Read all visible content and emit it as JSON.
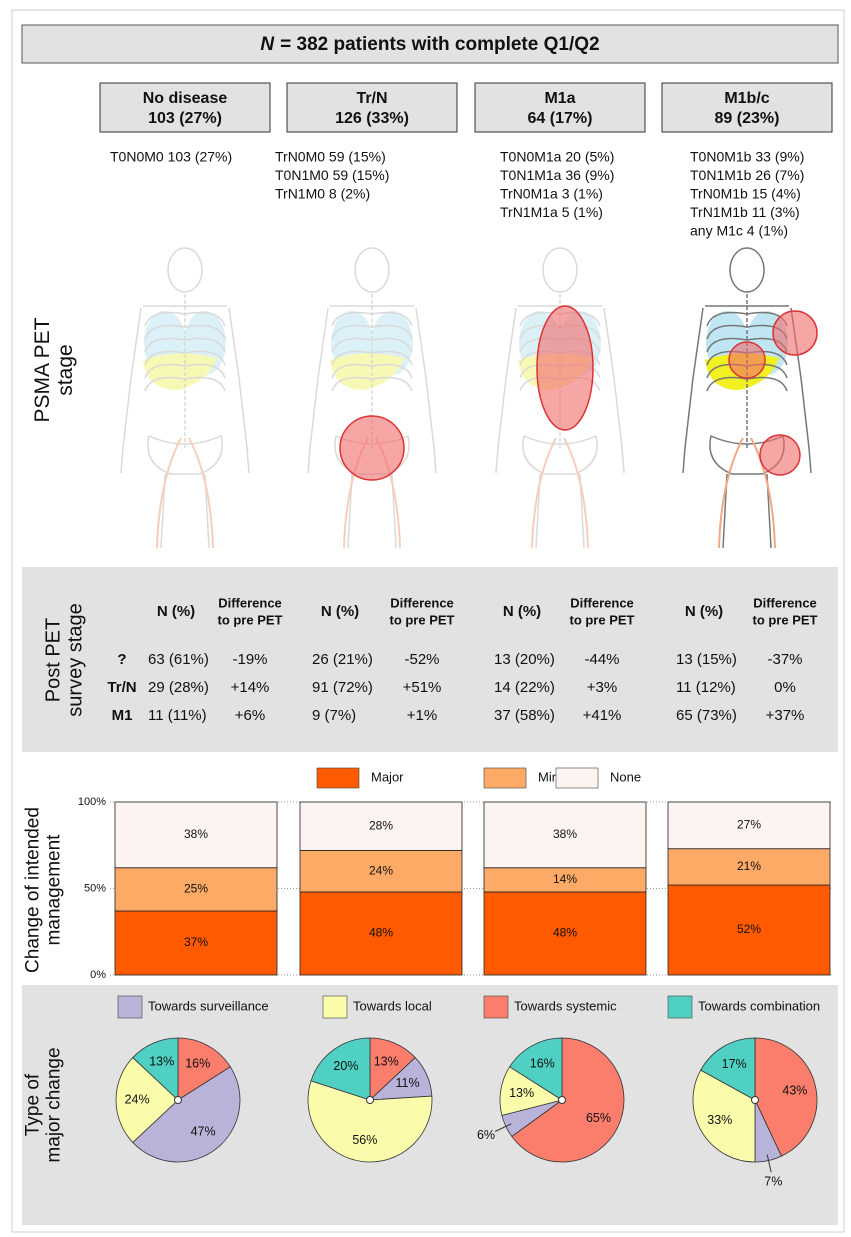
{
  "header": {
    "title_var": "N",
    "title_rest": "= 382 patients with complete Q1/Q2"
  },
  "stage_row_label": [
    "PSMA PET",
    "stage"
  ],
  "stages": [
    {
      "name": "No disease",
      "count": "103 (27%)",
      "breakdown": [
        "T0N0M0 103 (27%)"
      ]
    },
    {
      "name": "Tr/N",
      "count": "126 (33%)",
      "breakdown": [
        "TrN0M0 59 (15%)",
        "T0N1M0 59 (15%)",
        "TrN1M0 8 (2%)"
      ]
    },
    {
      "name": "M1a",
      "count": "64 (17%)",
      "breakdown": [
        "T0N0M1a 20 (5%)",
        "T0N1M1a 36 (9%)",
        "TrN0M1a 3 (1%)",
        "TrN1M1a 5 (1%)"
      ]
    },
    {
      "name": "M1b/c",
      "count": "89 (23%)",
      "breakdown": [
        "T0N0M1b 33 (9%)",
        "T0N1M1b 26 (7%)",
        "TrN0M1b 15 (4%)",
        "TrN1M1b 11 (3%)",
        "any M1c 4 (1%)"
      ]
    }
  ],
  "survey": {
    "label": [
      "Post PET",
      "survey stage"
    ],
    "header_n": "N (%)",
    "header_diff": [
      "Difference",
      "to pre PET"
    ],
    "row_labels": [
      "?",
      "Tr/N",
      "M1"
    ],
    "columns": [
      [
        [
          "63 (61%)",
          "-19%"
        ],
        [
          "29 (28%)",
          "+14%"
        ],
        [
          "11 (11%)",
          "+6%"
        ]
      ],
      [
        [
          "26 (21%)",
          "-52%"
        ],
        [
          "91 (72%)",
          "+51%"
        ],
        [
          "9 (7%)",
          "+1%"
        ]
      ],
      [
        [
          "13 (20%)",
          "-44%"
        ],
        [
          "14 (22%)",
          "+3%"
        ],
        [
          "37 (58%)",
          "+41%"
        ]
      ],
      [
        [
          "13 (15%)",
          "-37%"
        ],
        [
          "11 (12%)",
          "0%"
        ],
        [
          "65 (73%)",
          "+37%"
        ]
      ]
    ]
  },
  "chart_data": [
    {
      "type": "bar",
      "stacked": true,
      "ylabel": [
        "Change of intended",
        "management"
      ],
      "categories": [
        null,
        null,
        null,
        null
      ],
      "series": [
        {
          "name": "Major",
          "color": "#ff5a00",
          "values": [
            37,
            48,
            48,
            52
          ],
          "value_labels": [
            "37%",
            "48%",
            "48%",
            "52%"
          ]
        },
        {
          "name": "Minor",
          "color": "#fdaa66",
          "values": [
            25,
            24,
            14,
            21
          ],
          "value_labels": [
            "25%",
            "24%",
            "14%",
            "21%"
          ]
        },
        {
          "name": "None",
          "color": "#fbf4f1",
          "values": [
            38,
            28,
            38,
            27
          ],
          "value_labels": [
            "38%",
            "28%",
            "38%",
            "27%"
          ]
        }
      ],
      "ylim": [
        0,
        100
      ],
      "yticks": [
        {
          "value": 0,
          "label": "0%"
        },
        {
          "value": 50,
          "label": "50%"
        },
        {
          "value": 100,
          "label": "100%"
        }
      ],
      "grid": true
    },
    {
      "type": "pie",
      "ylabel": [
        "Type of",
        "major change"
      ],
      "categories": [
        "Towards surveillance",
        "Towards local",
        "Towards systemic",
        "Towards combination"
      ],
      "colors": [
        "#b9b2d9",
        "#fafcab",
        "#fb7d6b",
        "#4fd0c2"
      ],
      "series": [
        {
          "values": [
            47,
            24,
            16,
            13
          ],
          "value_labels": [
            "47%",
            "24%",
            "16%",
            "13%"
          ]
        },
        {
          "values": [
            11,
            56,
            13,
            20
          ],
          "value_labels": [
            "11%",
            "56%",
            "13%",
            "20%"
          ]
        },
        {
          "values": [
            6,
            13,
            65,
            16
          ],
          "value_labels": [
            "6%",
            "13%",
            "65%",
            "16%"
          ]
        },
        {
          "values": [
            7,
            33,
            43,
            17
          ],
          "value_labels": [
            "7%",
            "33%",
            "43%",
            "17%"
          ]
        }
      ]
    }
  ]
}
